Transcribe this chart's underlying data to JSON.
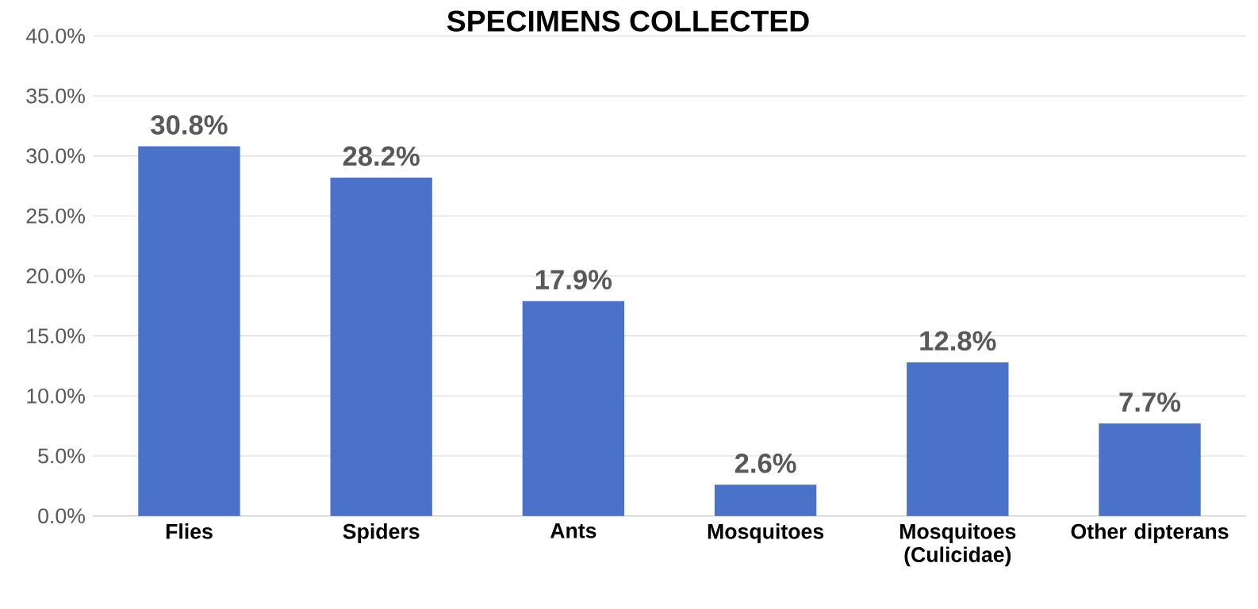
{
  "chart_data": {
    "type": "bar",
    "title": "SPECIMENS COLLECTED",
    "categories": [
      "Flies",
      "Spiders",
      "Ants",
      "Mosquitoes",
      "Mosquitoes (Culicidae)",
      "Other dipterans"
    ],
    "values": [
      30.8,
      28.2,
      17.9,
      2.6,
      12.8,
      7.7
    ],
    "value_labels": [
      "30.8%",
      "28.2%",
      "17.9%",
      "2.6%",
      "12.8%",
      "7.7%"
    ],
    "color": "#4a72c8",
    "ylim": [
      0,
      40
    ],
    "yticks": [
      {
        "value": 0,
        "label": "0.0%"
      },
      {
        "value": 5,
        "label": "5.0%"
      },
      {
        "value": 10,
        "label": "10.0%"
      },
      {
        "value": 15,
        "label": "15.0%"
      },
      {
        "value": 20,
        "label": "20.0%"
      },
      {
        "value": 25,
        "label": "25.0%"
      },
      {
        "value": 30,
        "label": "30.0%"
      },
      {
        "value": 35,
        "label": "35.0%"
      },
      {
        "value": 40,
        "label": "40.0%"
      }
    ],
    "grid": "y"
  }
}
